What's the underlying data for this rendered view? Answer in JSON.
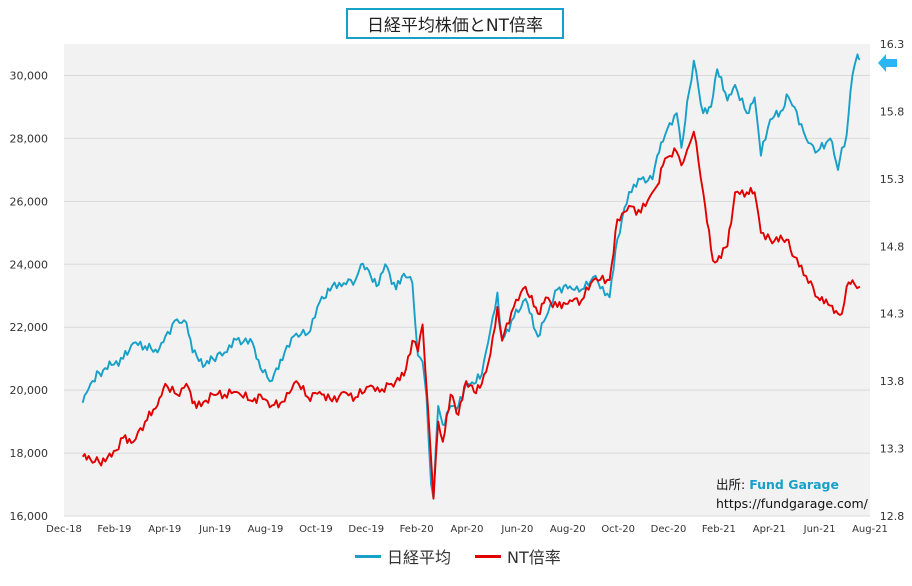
{
  "colors": {
    "nikkei": "#17a0c8",
    "nt": "#e00000",
    "marker": "#29b6f6"
  },
  "chart_data": {
    "type": "line",
    "title": "日経平均株価とNT倍率",
    "x_tick_labels": [
      "Dec-18",
      "Feb-19",
      "Apr-19",
      "Jun-19",
      "Aug-19",
      "Oct-19",
      "Dec-19",
      "Feb-20",
      "Apr-20",
      "Jun-20",
      "Aug-20",
      "Oct-20",
      "Dec-20",
      "Feb-21",
      "Apr-21",
      "Jun-21",
      "Aug-21"
    ],
    "y_left": {
      "ticks": [
        "16,000",
        "18,000",
        "20,000",
        "22,000",
        "24,000",
        "26,000",
        "28,000",
        "30,000"
      ],
      "range": [
        16000,
        31000
      ]
    },
    "y_right": {
      "ticks": [
        "12.8",
        "13.3",
        "13.8",
        "14.3",
        "14.8",
        "15.3",
        "15.8",
        "16.3"
      ],
      "range": [
        12.8,
        16.3
      ]
    },
    "grid": "horizontal",
    "legend_position": "bottom",
    "series": [
      {
        "name": "日経平均",
        "axis": "left",
        "color": "#17a0c8",
        "points": [
          [
            "2018-12-25",
            19600
          ],
          [
            "2019-01-04",
            20200
          ],
          [
            "2019-01-15",
            20550
          ],
          [
            "2019-01-31",
            20800
          ],
          [
            "2019-02-15",
            21000
          ],
          [
            "2019-02-28",
            21500
          ],
          [
            "2019-03-15",
            21400
          ],
          [
            "2019-03-31",
            21200
          ],
          [
            "2019-04-10",
            21700
          ],
          [
            "2019-04-25",
            22250
          ],
          [
            "2019-05-07",
            22150
          ],
          [
            "2019-05-15",
            21200
          ],
          [
            "2019-05-31",
            20800
          ],
          [
            "2019-06-10",
            21000
          ],
          [
            "2019-06-25",
            21200
          ],
          [
            "2019-07-10",
            21600
          ],
          [
            "2019-07-31",
            21500
          ],
          [
            "2019-08-10",
            20700
          ],
          [
            "2019-08-25",
            20300
          ],
          [
            "2019-09-10",
            21200
          ],
          [
            "2019-09-25",
            21800
          ],
          [
            "2019-10-10",
            21800
          ],
          [
            "2019-10-25",
            22800
          ],
          [
            "2019-11-10",
            23300
          ],
          [
            "2019-11-25",
            23400
          ],
          [
            "2019-12-10",
            23500
          ],
          [
            "2019-12-17",
            24000
          ],
          [
            "2019-12-27",
            23800
          ],
          [
            "2020-01-06",
            23300
          ],
          [
            "2020-01-17",
            24000
          ],
          [
            "2020-01-31",
            23200
          ],
          [
            "2020-02-10",
            23700
          ],
          [
            "2020-02-21",
            23400
          ],
          [
            "2020-02-28",
            21100
          ],
          [
            "2020-03-05",
            20900
          ],
          [
            "2020-03-10",
            19800
          ],
          [
            "2020-03-16",
            17000
          ],
          [
            "2020-03-19",
            16550
          ],
          [
            "2020-03-25",
            19500
          ],
          [
            "2020-03-31",
            18900
          ],
          [
            "2020-04-10",
            19500
          ],
          [
            "2020-04-20",
            19500
          ],
          [
            "2020-04-30",
            20200
          ],
          [
            "2020-05-10",
            20200
          ],
          [
            "2020-05-20",
            20500
          ],
          [
            "2020-05-31",
            21900
          ],
          [
            "2020-06-09",
            23100
          ],
          [
            "2020-06-15",
            21600
          ],
          [
            "2020-06-30",
            22300
          ],
          [
            "2020-07-15",
            22900
          ],
          [
            "2020-07-31",
            21700
          ],
          [
            "2020-08-10",
            22300
          ],
          [
            "2020-08-25",
            23200
          ],
          [
            "2020-09-10",
            23300
          ],
          [
            "2020-09-25",
            23200
          ],
          [
            "2020-10-10",
            23600
          ],
          [
            "2020-10-31",
            22950
          ],
          [
            "2020-11-10",
            24800
          ],
          [
            "2020-11-25",
            26300
          ],
          [
            "2020-12-10",
            26700
          ],
          [
            "2020-12-25",
            26700
          ],
          [
            "2020-12-31",
            27450
          ],
          [
            "2021-01-10",
            28100
          ],
          [
            "2021-01-25",
            28800
          ],
          [
            "2021-01-31",
            27700
          ],
          [
            "2021-02-10",
            29500
          ],
          [
            "2021-02-16",
            30470
          ],
          [
            "2021-02-28",
            28800
          ],
          [
            "2021-03-10",
            29000
          ],
          [
            "2021-03-18",
            30200
          ],
          [
            "2021-03-31",
            29200
          ],
          [
            "2021-04-10",
            29700
          ],
          [
            "2021-04-25",
            28800
          ],
          [
            "2021-05-05",
            29300
          ],
          [
            "2021-05-13",
            27450
          ],
          [
            "2021-05-25",
            28600
          ],
          [
            "2021-06-10",
            28900
          ],
          [
            "2021-06-15",
            29400
          ],
          [
            "2021-06-25",
            29000
          ],
          [
            "2021-07-10",
            28000
          ],
          [
            "2021-07-25",
            27600
          ],
          [
            "2021-08-10",
            28000
          ],
          [
            "2021-08-20",
            27000
          ],
          [
            "2021-08-25",
            27700
          ],
          [
            "2021-08-31",
            28100
          ],
          [
            "2021-09-05",
            29500
          ],
          [
            "2021-09-10",
            30300
          ],
          [
            "2021-09-14",
            30670
          ],
          [
            "2021-09-17",
            30500
          ]
        ]
      },
      {
        "name": "NT倍率",
        "axis": "right",
        "color": "#e00000",
        "points": [
          [
            "2018-12-25",
            13.24
          ],
          [
            "2019-01-04",
            13.22
          ],
          [
            "2019-01-15",
            13.2
          ],
          [
            "2019-01-31",
            13.24
          ],
          [
            "2019-02-15",
            13.38
          ],
          [
            "2019-02-28",
            13.35
          ],
          [
            "2019-03-15",
            13.5
          ],
          [
            "2019-03-31",
            13.62
          ],
          [
            "2019-04-10",
            13.78
          ],
          [
            "2019-04-25",
            13.7
          ],
          [
            "2019-05-07",
            13.78
          ],
          [
            "2019-05-20",
            13.6
          ],
          [
            "2019-06-10",
            13.7
          ],
          [
            "2019-06-25",
            13.7
          ],
          [
            "2019-07-10",
            13.72
          ],
          [
            "2019-07-31",
            13.65
          ],
          [
            "2019-08-10",
            13.7
          ],
          [
            "2019-08-25",
            13.62
          ],
          [
            "2019-09-10",
            13.65
          ],
          [
            "2019-09-25",
            13.8
          ],
          [
            "2019-10-10",
            13.68
          ],
          [
            "2019-10-25",
            13.72
          ],
          [
            "2019-11-10",
            13.65
          ],
          [
            "2019-11-25",
            13.72
          ],
          [
            "2019-12-10",
            13.68
          ],
          [
            "2019-12-27",
            13.76
          ],
          [
            "2020-01-10",
            13.72
          ],
          [
            "2020-01-25",
            13.78
          ],
          [
            "2020-02-10",
            13.84
          ],
          [
            "2020-02-21",
            14.1
          ],
          [
            "2020-02-28",
            14.02
          ],
          [
            "2020-03-05",
            14.22
          ],
          [
            "2020-03-12",
            13.6
          ],
          [
            "2020-03-19",
            12.93
          ],
          [
            "2020-03-25",
            13.5
          ],
          [
            "2020-03-31",
            13.35
          ],
          [
            "2020-04-10",
            13.7
          ],
          [
            "2020-04-20",
            13.55
          ],
          [
            "2020-04-30",
            13.8
          ],
          [
            "2020-05-10",
            13.72
          ],
          [
            "2020-05-20",
            13.78
          ],
          [
            "2020-05-31",
            14.0
          ],
          [
            "2020-06-09",
            14.35
          ],
          [
            "2020-06-15",
            14.1
          ],
          [
            "2020-06-30",
            14.35
          ],
          [
            "2020-07-15",
            14.5
          ],
          [
            "2020-07-31",
            14.3
          ],
          [
            "2020-08-10",
            14.42
          ],
          [
            "2020-08-25",
            14.35
          ],
          [
            "2020-09-10",
            14.4
          ],
          [
            "2020-09-25",
            14.4
          ],
          [
            "2020-10-10",
            14.55
          ],
          [
            "2020-10-31",
            14.55
          ],
          [
            "2020-11-10",
            15.0
          ],
          [
            "2020-11-25",
            15.1
          ],
          [
            "2020-12-10",
            15.05
          ],
          [
            "2020-12-25",
            15.2
          ],
          [
            "2020-12-31",
            15.25
          ],
          [
            "2021-01-10",
            15.45
          ],
          [
            "2021-01-25",
            15.5
          ],
          [
            "2021-01-31",
            15.4
          ],
          [
            "2021-02-10",
            15.55
          ],
          [
            "2021-02-16",
            15.65
          ],
          [
            "2021-02-28",
            15.2
          ],
          [
            "2021-03-10",
            14.78
          ],
          [
            "2021-03-15",
            14.68
          ],
          [
            "2021-03-31",
            14.8
          ],
          [
            "2021-04-10",
            15.2
          ],
          [
            "2021-04-25",
            15.2
          ],
          [
            "2021-05-05",
            15.2
          ],
          [
            "2021-05-13",
            14.9
          ],
          [
            "2021-05-25",
            14.85
          ],
          [
            "2021-06-10",
            14.85
          ],
          [
            "2021-06-15",
            14.85
          ],
          [
            "2021-06-25",
            14.72
          ],
          [
            "2021-07-10",
            14.58
          ],
          [
            "2021-07-25",
            14.42
          ],
          [
            "2021-08-10",
            14.36
          ],
          [
            "2021-08-20",
            14.3
          ],
          [
            "2021-08-25",
            14.3
          ],
          [
            "2021-08-31",
            14.5
          ],
          [
            "2021-09-05",
            14.52
          ],
          [
            "2021-09-10",
            14.52
          ],
          [
            "2021-09-17",
            14.5
          ]
        ]
      }
    ]
  },
  "source": {
    "label": "出所:",
    "brand": "Fund Garage",
    "url": "https://fundgarage.com/"
  }
}
